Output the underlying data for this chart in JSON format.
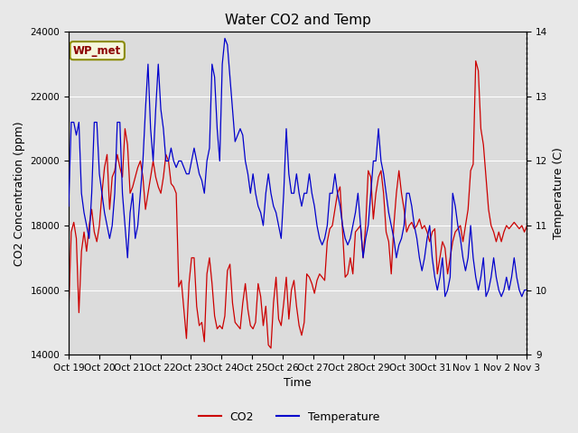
{
  "title": "Water CO2 and Temp",
  "xlabel": "Time",
  "ylabel_left": "CO2 Concentration (ppm)",
  "ylabel_right": "Temperature (C)",
  "ylim_left": [
    14000,
    24000
  ],
  "ylim_right": [
    9.0,
    14.0
  ],
  "xtick_labels": [
    "Oct 19",
    "Oct 20",
    "Oct 21",
    "Oct 22",
    "Oct 23",
    "Oct 24",
    "Oct 25",
    "Oct 26",
    "Oct 27",
    "Oct 28",
    "Oct 29",
    "Oct 30",
    "Oct 31",
    "Nov 1",
    "Nov 2",
    "Nov 3"
  ],
  "co2_color": "#cc0000",
  "temp_color": "#0000cc",
  "fig_bg": "#e8e8e8",
  "plot_bg": "#dcdcdc",
  "wp_met_label": "WP_met",
  "wp_met_text_color": "#8b0000",
  "wp_met_box_facecolor": "#f5f5dc",
  "wp_met_box_edgecolor": "#8b8b00",
  "legend_co2": "CO2",
  "legend_temp": "Temperature",
  "title_fontsize": 11,
  "axis_fontsize": 9,
  "tick_fontsize": 7.5,
  "co2_data": [
    15300,
    17800,
    18100,
    17600,
    15300,
    17200,
    17800,
    17200,
    18000,
    18500,
    17800,
    17500,
    18000,
    19000,
    19800,
    20200,
    18500,
    19500,
    19700,
    20200,
    19800,
    19500,
    21000,
    20500,
    19000,
    19200,
    19500,
    19800,
    20000,
    19500,
    18500,
    19000,
    19500,
    20000,
    19500,
    19200,
    19000,
    19500,
    20200,
    20000,
    19300,
    19200,
    19000,
    16100,
    16300,
    15400,
    14500,
    16200,
    17000,
    17000,
    15500,
    14900,
    15000,
    14400,
    16500,
    17000,
    16200,
    15200,
    14800,
    14900,
    14800,
    15200,
    16600,
    16800,
    15600,
    15000,
    14900,
    14800,
    15600,
    16200,
    15400,
    14900,
    14800,
    15000,
    16200,
    15800,
    14900,
    15500,
    14300,
    14200,
    15600,
    16400,
    15100,
    14900,
    15600,
    16400,
    15100,
    16000,
    16300,
    15500,
    14900,
    14600,
    15000,
    16500,
    16400,
    16200,
    15900,
    16300,
    16500,
    16400,
    16300,
    17500,
    17900,
    18000,
    18500,
    19000,
    19200,
    17800,
    16400,
    16500,
    17000,
    16500,
    17800,
    17900,
    18000,
    17000,
    18000,
    19700,
    19500,
    18200,
    19000,
    19500,
    19700,
    19000,
    17800,
    17500,
    16500,
    18000,
    19000,
    19700,
    19000,
    18500,
    17800,
    18000,
    18100,
    17900,
    18000,
    18200,
    17900,
    18000,
    17800,
    17500,
    17800,
    17900,
    16500,
    17000,
    17500,
    17300,
    16500,
    17000,
    17500,
    17800,
    17900,
    18000,
    17500,
    18000,
    18500,
    19700,
    19900,
    23100,
    22800,
    21000,
    20500,
    19500,
    18500,
    18000,
    17800,
    17500,
    17800,
    17500,
    17800,
    18000,
    17900,
    18000,
    18100,
    18000,
    17900,
    18000,
    17800,
    18000
  ],
  "temp_data": [
    11.3,
    12.6,
    12.6,
    12.4,
    12.6,
    11.5,
    11.2,
    11.0,
    10.8,
    11.5,
    12.6,
    12.6,
    11.8,
    11.5,
    11.2,
    11.0,
    10.8,
    11.0,
    11.5,
    12.6,
    12.6,
    11.5,
    11.0,
    10.5,
    11.2,
    11.5,
    10.8,
    11.0,
    11.5,
    12.0,
    12.8,
    13.5,
    12.5,
    12.0,
    12.8,
    13.5,
    12.8,
    12.5,
    12.0,
    12.0,
    12.2,
    12.0,
    11.9,
    12.0,
    12.0,
    11.9,
    11.8,
    11.8,
    12.0,
    12.2,
    12.0,
    11.8,
    11.7,
    11.5,
    12.0,
    12.2,
    13.5,
    13.3,
    12.5,
    12.0,
    13.5,
    13.9,
    13.8,
    13.3,
    12.8,
    12.3,
    12.4,
    12.5,
    12.4,
    12.0,
    11.8,
    11.5,
    11.8,
    11.5,
    11.3,
    11.2,
    11.0,
    11.5,
    11.8,
    11.5,
    11.3,
    11.2,
    11.0,
    10.8,
    11.5,
    12.5,
    11.8,
    11.5,
    11.5,
    11.8,
    11.5,
    11.3,
    11.5,
    11.5,
    11.8,
    11.5,
    11.3,
    11.0,
    10.8,
    10.7,
    10.8,
    11.0,
    11.5,
    11.5,
    11.8,
    11.5,
    11.3,
    11.0,
    10.8,
    10.7,
    10.8,
    11.0,
    11.2,
    11.5,
    11.0,
    10.5,
    10.8,
    11.0,
    11.5,
    12.0,
    12.0,
    12.5,
    12.0,
    11.8,
    11.5,
    11.2,
    11.0,
    10.8,
    10.5,
    10.7,
    10.8,
    11.0,
    11.5,
    11.5,
    11.3,
    11.0,
    10.8,
    10.5,
    10.3,
    10.5,
    10.8,
    11.0,
    10.5,
    10.2,
    10.0,
    10.2,
    10.5,
    9.9,
    10.0,
    10.2,
    11.5,
    11.3,
    11.0,
    10.8,
    10.5,
    10.3,
    10.5,
    11.0,
    10.5,
    10.2,
    10.0,
    10.2,
    10.5,
    9.9,
    10.0,
    10.2,
    10.5,
    10.2,
    10.0,
    9.9,
    10.0,
    10.2,
    10.0,
    10.2,
    10.5,
    10.2,
    10.0,
    9.9,
    10.0,
    10.0
  ]
}
